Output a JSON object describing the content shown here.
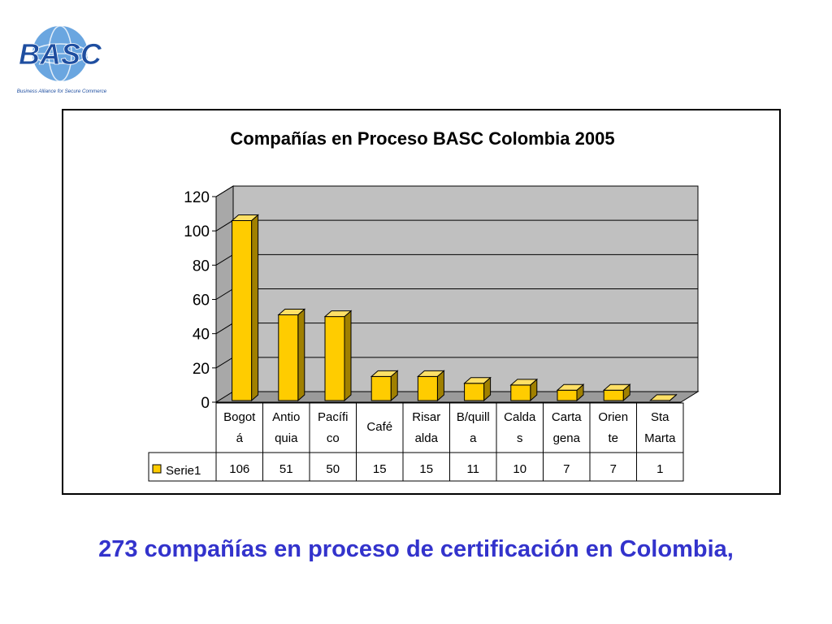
{
  "logo": {
    "mark_text": "BASC",
    "tagline": "Business Alliance for Secure Commerce"
  },
  "caption": "273 compañías en proceso de certificación en Colombia,",
  "colors": {
    "bar_front": "#ffcc00",
    "bar_side": "#a08000",
    "bar_top": "#ffe066",
    "wall": "#c0c0c0",
    "caption": "#3333cc",
    "logo_blue": "#1e4ea0"
  },
  "chart_data": {
    "type": "bar",
    "title": "Compañías en Proceso BASC Colombia 2005",
    "categories": [
      "Bogotá",
      "Antioquia",
      "Pacífico",
      "Café",
      "Risaralda",
      "B/quilla",
      "Caldas",
      "Cartagena",
      "Oriente",
      "Sta Marta"
    ],
    "category_tick_labels": [
      [
        "Bogot",
        "á"
      ],
      [
        "Antio",
        "quia"
      ],
      [
        "Pacífi",
        "co"
      ],
      [
        "Café"
      ],
      [
        "Risar",
        "alda"
      ],
      [
        "B/quill",
        "a"
      ],
      [
        "Calda",
        "s"
      ],
      [
        "Carta",
        "gena"
      ],
      [
        "Orien",
        "te"
      ],
      [
        "Sta",
        "Marta"
      ]
    ],
    "series": [
      {
        "name": "Serie1",
        "values": [
          106,
          51,
          50,
          15,
          15,
          11,
          10,
          7,
          7,
          1
        ]
      }
    ],
    "ylim": [
      0,
      120
    ],
    "yticks": [
      0,
      20,
      40,
      60,
      80,
      100,
      120
    ],
    "grid": true,
    "data_table": true,
    "style": "3d-column"
  }
}
